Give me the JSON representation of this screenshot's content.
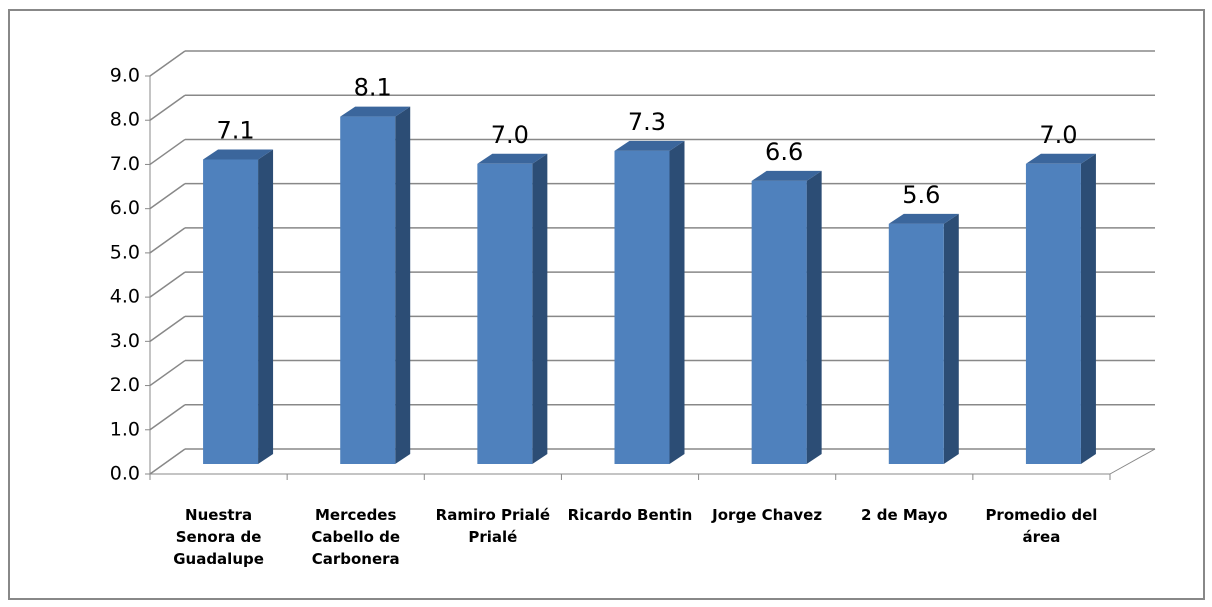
{
  "chart_data": {
    "type": "bar3d",
    "categories": [
      "Nuestra Senora de Guadalupe",
      "Mercedes Cabello de Carbonera",
      "Ramiro Prialé Prialé",
      "Ricardo Bentin",
      "Jorge Chavez",
      "2 de Mayo",
      "Promedio del área"
    ],
    "values": [
      7.1,
      8.1,
      7.0,
      7.3,
      6.6,
      5.6,
      7.0
    ],
    "value_labels": [
      "7.1",
      "8.1",
      "7.0",
      "7.3",
      "6.6",
      "5.6",
      "7.0"
    ],
    "color": "#4f81bd",
    "ylim": [
      0,
      9
    ],
    "yticks": [
      {
        "value": 0,
        "label": "0.0"
      },
      {
        "value": 1,
        "label": "1.0"
      },
      {
        "value": 2,
        "label": "2.0"
      },
      {
        "value": 3,
        "label": "3.0"
      },
      {
        "value": 4,
        "label": "4.0"
      },
      {
        "value": 5,
        "label": "5.0"
      },
      {
        "value": 6,
        "label": "6.0"
      },
      {
        "value": 7,
        "label": "7.0"
      },
      {
        "value": 8,
        "label": "8.0"
      },
      {
        "value": 9,
        "label": "9.0"
      }
    ],
    "grid": true
  }
}
